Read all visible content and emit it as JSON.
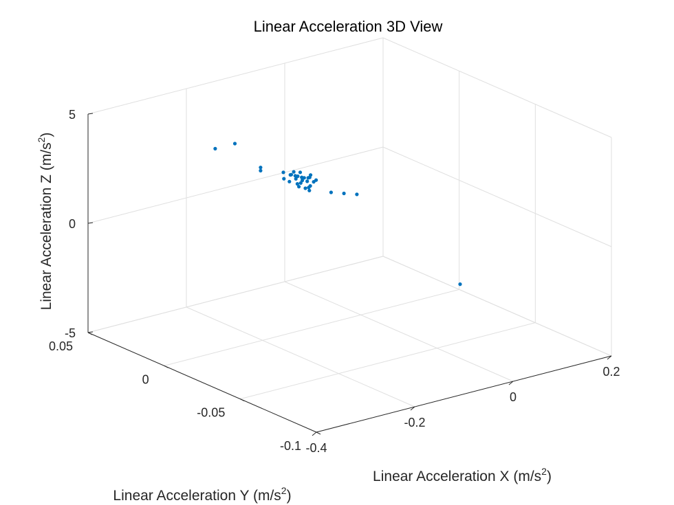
{
  "chart_data": {
    "type": "scatter",
    "title": "Linear Acceleration 3D View",
    "xlabel": "Linear Acceleration X (m/s",
    "ylabel": "Linear Acceleration Y (m/s",
    "zlabel": "Linear Acceleration Z (m/s",
    "label_exponent": "2",
    "label_close": ")",
    "xlim": [
      -0.4,
      0.2
    ],
    "ylim": [
      -0.1,
      0.05
    ],
    "zlim": [
      -5,
      5
    ],
    "xticks": [
      -0.4,
      -0.2,
      0,
      0.2
    ],
    "xtick_labels": [
      "-0.4",
      "-0.2",
      "0",
      "0.2"
    ],
    "yticks": [
      -0.1,
      -0.05,
      0,
      0.05
    ],
    "ytick_labels": [
      "-0.1",
      "-0.05",
      "0",
      "0.05"
    ],
    "zticks": [
      -5,
      0,
      5
    ],
    "ztick_labels": [
      "-5",
      "0",
      "5"
    ],
    "grid": true,
    "marker_color": "#0072BD",
    "points": [
      {
        "x": -0.16,
        "y": 0.044,
        "z": 2.2
      },
      {
        "x": -0.12,
        "y": 0.044,
        "z": 2.2
      },
      {
        "x": -0.08,
        "y": 0.04,
        "z": 1.0
      },
      {
        "x": -0.08,
        "y": 0.04,
        "z": 0.85
      },
      {
        "x": -0.04,
        "y": 0.038,
        "z": 0.6
      },
      {
        "x": -0.03,
        "y": 0.036,
        "z": 0.5
      },
      {
        "x": -0.025,
        "y": 0.035,
        "z": 0.45
      },
      {
        "x": -0.02,
        "y": 0.035,
        "z": 0.4
      },
      {
        "x": -0.015,
        "y": 0.034,
        "z": 0.35
      },
      {
        "x": -0.01,
        "y": 0.034,
        "z": 0.3
      },
      {
        "x": -0.005,
        "y": 0.033,
        "z": 0.3
      },
      {
        "x": -0.03,
        "y": 0.033,
        "z": 0.4
      },
      {
        "x": -0.02,
        "y": 0.032,
        "z": 0.3
      },
      {
        "x": -0.01,
        "y": 0.032,
        "z": 0.2
      },
      {
        "x": 0.0,
        "y": 0.031,
        "z": 0.15
      },
      {
        "x": -0.04,
        "y": 0.034,
        "z": 0.3
      },
      {
        "x": -0.03,
        "y": 0.031,
        "z": 0.1
      },
      {
        "x": -0.02,
        "y": 0.03,
        "z": 0.0
      },
      {
        "x": -0.01,
        "y": 0.03,
        "z": 0.05
      },
      {
        "x": -0.025,
        "y": 0.036,
        "z": 0.6
      },
      {
        "x": -0.015,
        "y": 0.035,
        "z": 0.55
      },
      {
        "x": -0.005,
        "y": 0.032,
        "z": 0.35
      },
      {
        "x": 0.005,
        "y": 0.031,
        "z": 0.2
      },
      {
        "x": -0.035,
        "y": 0.035,
        "z": 0.55
      },
      {
        "x": -0.02,
        "y": 0.033,
        "z": 0.15
      },
      {
        "x": -0.01,
        "y": 0.031,
        "z": -0.05
      },
      {
        "x": -0.03,
        "y": 0.032,
        "z": 0.2
      },
      {
        "x": 0.0,
        "y": 0.033,
        "z": 0.4
      },
      {
        "x": -0.045,
        "y": 0.036,
        "z": 0.4
      },
      {
        "x": -0.015,
        "y": 0.029,
        "z": -0.1
      },
      {
        "x": 0.02,
        "y": 0.026,
        "z": -0.3
      },
      {
        "x": 0.04,
        "y": 0.024,
        "z": -0.4
      },
      {
        "x": 0.06,
        "y": 0.022,
        "z": -0.5
      },
      {
        "x": 0.14,
        "y": -0.02,
        "z": -3.8
      }
    ]
  }
}
